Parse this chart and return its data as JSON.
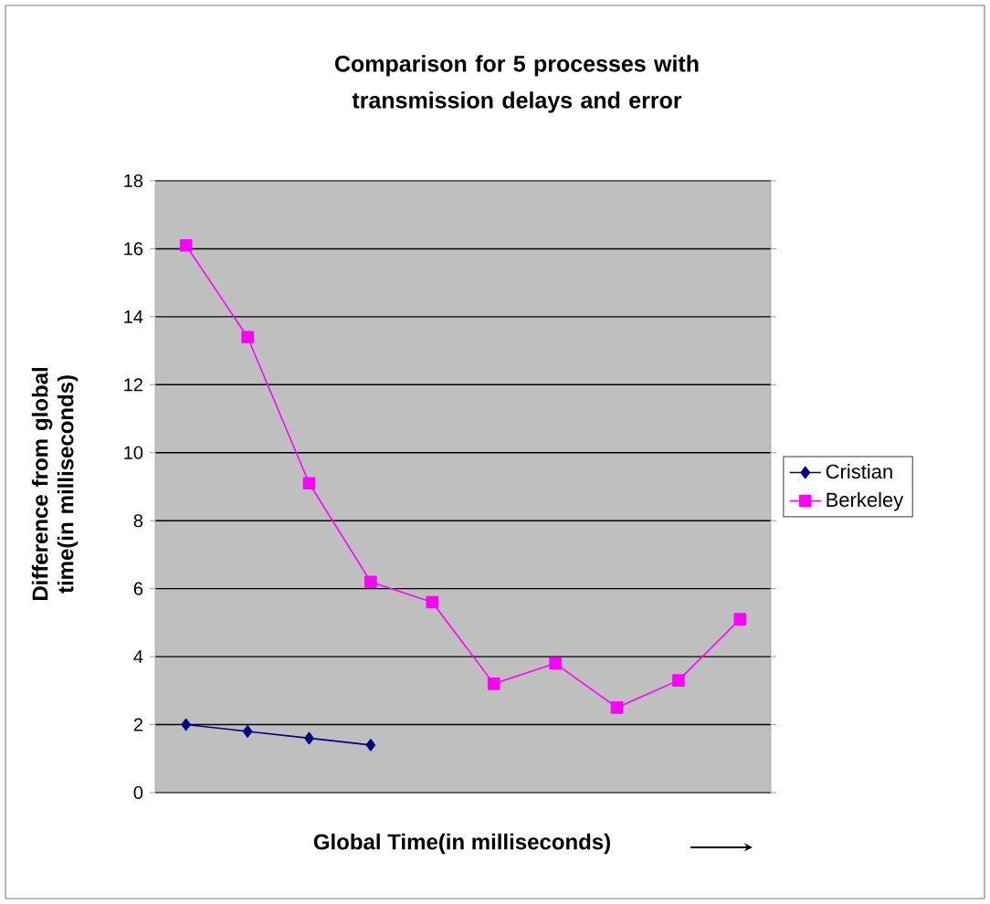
{
  "chart_data": {
    "type": "line",
    "title": "Comparison for 5 processes with transmission delays and error",
    "xlabel": "Global Time(in milliseconds)",
    "ylabel": "Difference from global time(in milliseconds)",
    "categories": [
      null,
      null,
      null,
      null,
      null,
      null,
      null,
      null,
      null,
      null
    ],
    "series": [
      {
        "name": "Cristian",
        "color": "#000080",
        "marker": "diamond",
        "values": [
          2.0,
          1.8,
          1.6,
          1.4,
          null,
          null,
          null,
          null,
          null,
          null
        ]
      },
      {
        "name": "Berkeley",
        "color": "#ff00ff",
        "marker": "square",
        "values": [
          16.1,
          13.4,
          9.1,
          6.2,
          5.6,
          3.2,
          3.8,
          2.5,
          3.3,
          5.1
        ]
      }
    ],
    "ylim": [
      0,
      18
    ],
    "yticks": [
      0,
      2,
      4,
      6,
      8,
      10,
      12,
      14,
      16,
      18
    ],
    "grid": "y",
    "legend": "right",
    "tick_labels": "y"
  }
}
